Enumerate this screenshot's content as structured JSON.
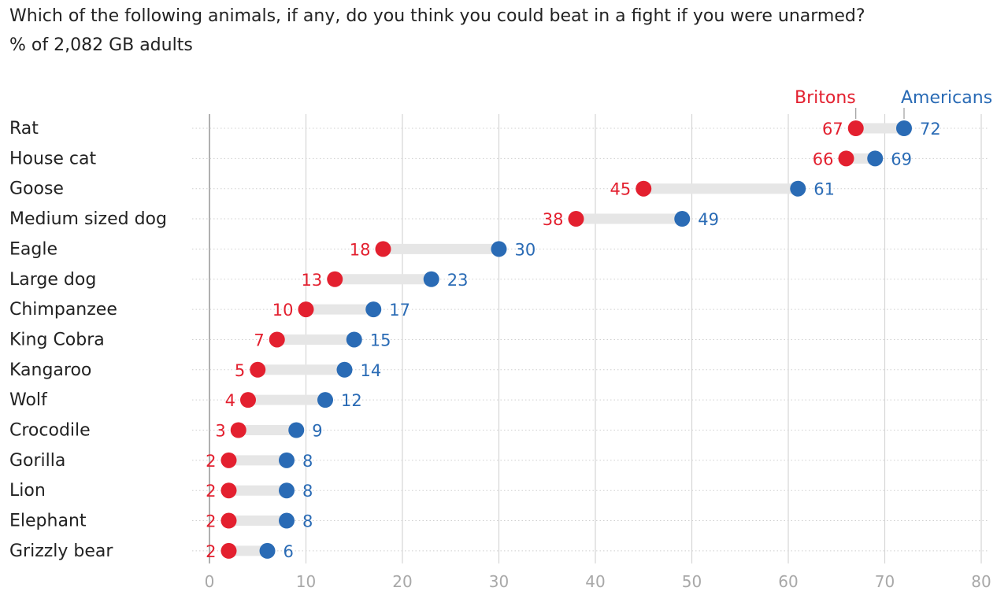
{
  "header": {
    "title": "Which of the following animals, if any, do you think you could beat in a fight if you were unarmed?",
    "subtitle": "% of 2,082 GB adults"
  },
  "colors": {
    "britons": "#e3202f",
    "americans": "#2a6bb5",
    "connector": "#e6e6e6",
    "grid": "#d6d6d6",
    "tick_text": "#a8a8a8",
    "label_text": "#222222"
  },
  "chart_data": {
    "type": "dumbbell",
    "title": "Which of the following animals, if any, do you think you could beat in a fight if you were unarmed?",
    "subtitle": "% of 2,082 GB adults",
    "categories": [
      "Rat",
      "House cat",
      "Goose",
      "Medium sized dog",
      "Eagle",
      "Large dog",
      "Chimpanzee",
      "King Cobra",
      "Kangaroo",
      "Wolf",
      "Crocodile",
      "Gorilla",
      "Lion",
      "Elephant",
      "Grizzly bear"
    ],
    "series": [
      {
        "name": "Britons",
        "color": "#e3202f",
        "values": [
          67,
          66,
          45,
          38,
          18,
          13,
          10,
          7,
          5,
          4,
          3,
          2,
          2,
          2,
          2
        ]
      },
      {
        "name": "Americans",
        "color": "#2a6bb5",
        "values": [
          72,
          69,
          61,
          49,
          30,
          23,
          17,
          15,
          14,
          12,
          9,
          8,
          8,
          8,
          6
        ]
      }
    ],
    "xlim": [
      0,
      80
    ],
    "xticks": [
      "0",
      "10",
      "20",
      "30",
      "40",
      "50",
      "60",
      "70",
      "80"
    ],
    "grid": true,
    "legend": "top-right, labels above the first row's dots"
  }
}
